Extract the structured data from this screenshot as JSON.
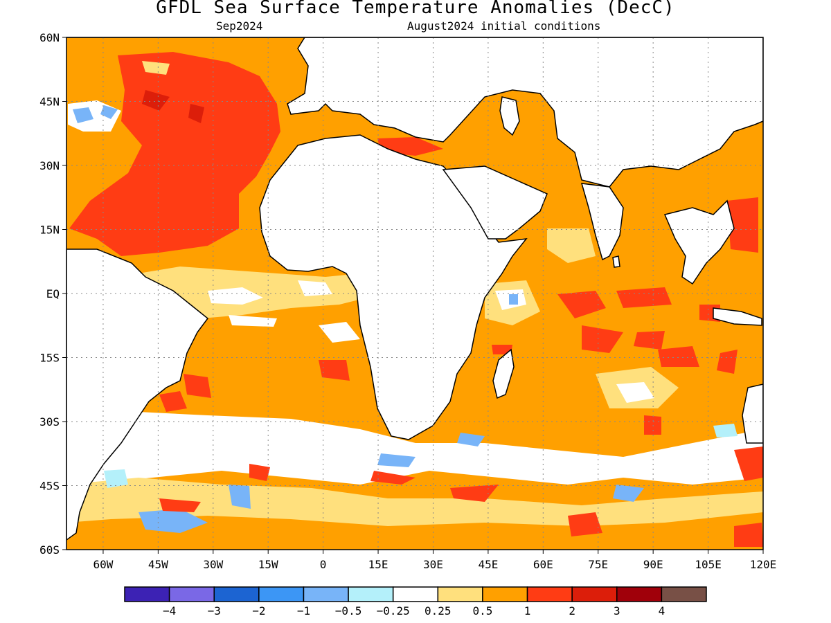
{
  "title": "GFDL Sea Surface Temperature Anomalies (DecC)",
  "subtitle_left": "Sep2024",
  "subtitle_right": "August2024 initial conditions",
  "map": {
    "lon_range": [
      -70,
      120
    ],
    "lat_range": [
      -60,
      60
    ],
    "grid": "dotted",
    "lat_ticks": [
      {
        "value": 60,
        "label": "60N"
      },
      {
        "value": 45,
        "label": "45N"
      },
      {
        "value": 30,
        "label": "30N"
      },
      {
        "value": 15,
        "label": "15N"
      },
      {
        "value": 0,
        "label": "EQ"
      },
      {
        "value": -15,
        "label": "15S"
      },
      {
        "value": -30,
        "label": "30S"
      },
      {
        "value": -45,
        "label": "45S"
      },
      {
        "value": -60,
        "label": "60S"
      }
    ],
    "lon_ticks": [
      {
        "value": -60,
        "label": "60W"
      },
      {
        "value": -45,
        "label": "45W"
      },
      {
        "value": -30,
        "label": "30W"
      },
      {
        "value": -15,
        "label": "15W"
      },
      {
        "value": 0,
        "label": "0"
      },
      {
        "value": 15,
        "label": "15E"
      },
      {
        "value": 30,
        "label": "30E"
      },
      {
        "value": 45,
        "label": "45E"
      },
      {
        "value": 60,
        "label": "60E"
      },
      {
        "value": 75,
        "label": "75E"
      },
      {
        "value": 90,
        "label": "90E"
      },
      {
        "value": 105,
        "label": "105E"
      },
      {
        "value": 120,
        "label": "120E"
      }
    ]
  },
  "colorbar": {
    "colors": [
      "#3c22b4",
      "#7a68e6",
      "#1c64d2",
      "#3c96f5",
      "#78b4f8",
      "#b4f0fa",
      "#ffffff",
      "#ffe07d",
      "#ffa000",
      "#ff3c14",
      "#dc1e0a",
      "#a0000a",
      "#785046"
    ],
    "labels": [
      "−4",
      "−3",
      "−2",
      "−1",
      "−0.5",
      "−0.25",
      "0.25",
      "0.5",
      "1",
      "2",
      "3",
      "4"
    ]
  },
  "legend_colors": {
    "orange": "#ffa000",
    "light_orange": "#ffe07d",
    "red": "#ff3c14",
    "dark_red": "#dc1e0a",
    "light_blue": "#b4f0fa",
    "blue": "#78b4f8",
    "land": "#ffffff"
  }
}
